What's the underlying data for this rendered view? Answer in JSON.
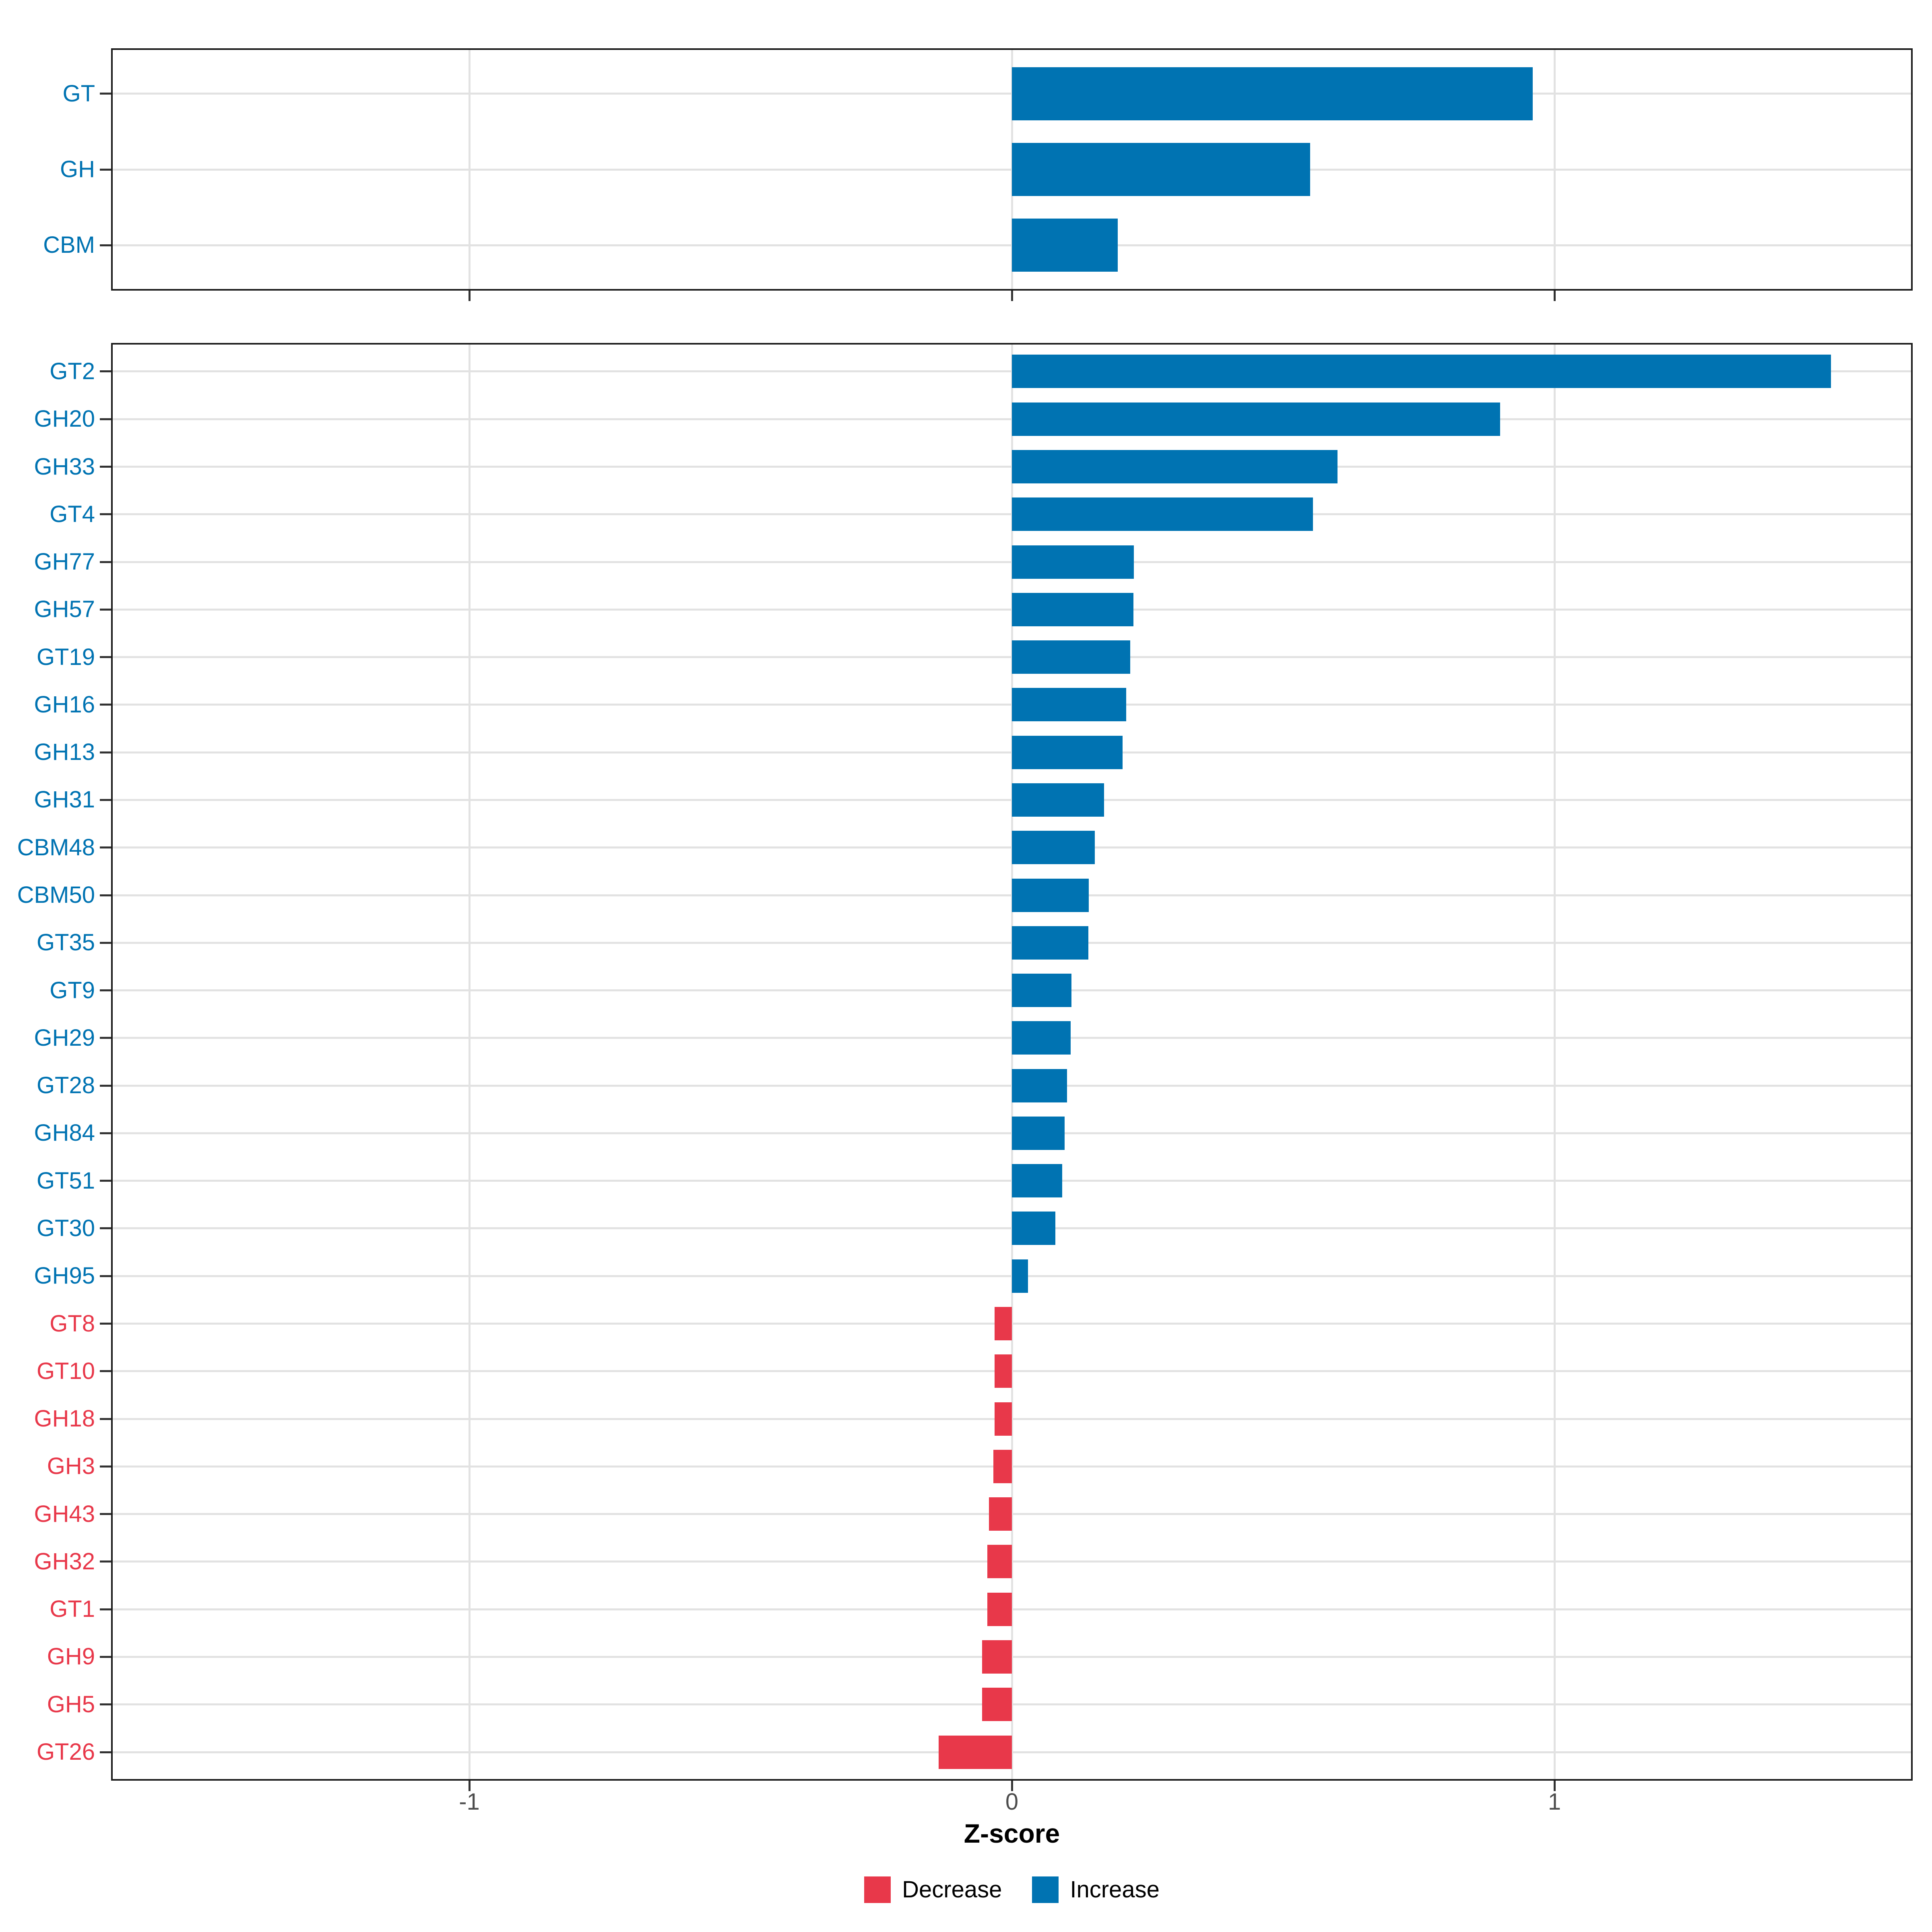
{
  "chart_data": {
    "type": "bar",
    "orientation": "horizontal",
    "title": "",
    "xlabel": "Z-score",
    "ylabel": "",
    "xlim": [
      -1.66,
      1.66
    ],
    "x_ticks": [
      {
        "value": -1,
        "label": "-1"
      },
      {
        "value": 0,
        "label": "0"
      },
      {
        "value": 1,
        "label": "1"
      }
    ],
    "grid": "major-x and per-category-y",
    "legend_position": "bottom",
    "panels": [
      {
        "name": "cazyme-class-panel",
        "categories": [
          "GT",
          "GH",
          "CBM"
        ],
        "values": [
          0.96,
          0.55,
          0.195
        ],
        "directions": [
          "increase",
          "increase",
          "increase"
        ]
      },
      {
        "name": "cazyme-family-panel",
        "categories": [
          "GT2",
          "GH20",
          "GH33",
          "GT4",
          "GH77",
          "GH57",
          "GT19",
          "GH16",
          "GH13",
          "GH31",
          "CBM48",
          "CBM50",
          "GT35",
          "GT9",
          "GH29",
          "GT28",
          "GH84",
          "GT51",
          "GT30",
          "GH95",
          "GT8",
          "GT10",
          "GH18",
          "GH3",
          "GH43",
          "GH32",
          "GT1",
          "GH9",
          "GH5",
          "GT26"
        ],
        "values": [
          1.51,
          0.9,
          0.6,
          0.555,
          0.225,
          0.224,
          0.218,
          0.211,
          0.204,
          0.17,
          0.153,
          0.142,
          0.141,
          0.11,
          0.108,
          0.102,
          0.097,
          0.093,
          0.08,
          0.03,
          -0.032,
          -0.032,
          -0.032,
          -0.034,
          -0.042,
          -0.045,
          -0.045,
          -0.055,
          -0.055,
          -0.135
        ],
        "directions": [
          "increase",
          "increase",
          "increase",
          "increase",
          "increase",
          "increase",
          "increase",
          "increase",
          "increase",
          "increase",
          "increase",
          "increase",
          "increase",
          "increase",
          "increase",
          "increase",
          "increase",
          "increase",
          "increase",
          "increase",
          "decrease",
          "decrease",
          "decrease",
          "decrease",
          "decrease",
          "decrease",
          "decrease",
          "decrease",
          "decrease",
          "decrease"
        ]
      }
    ],
    "legend": {
      "items": [
        {
          "label": "Decrease",
          "color": "#e8384a"
        },
        {
          "label": "Increase",
          "color": "#0073b2"
        }
      ]
    }
  },
  "colors": {
    "increase": "#0073b2",
    "decrease": "#e8384a",
    "gridline": "#e2e2e2",
    "panel_border": "#1a1a1a",
    "tick_mark": "#333333",
    "tick_label": "#4d4d4d",
    "background": "#ffffff"
  }
}
